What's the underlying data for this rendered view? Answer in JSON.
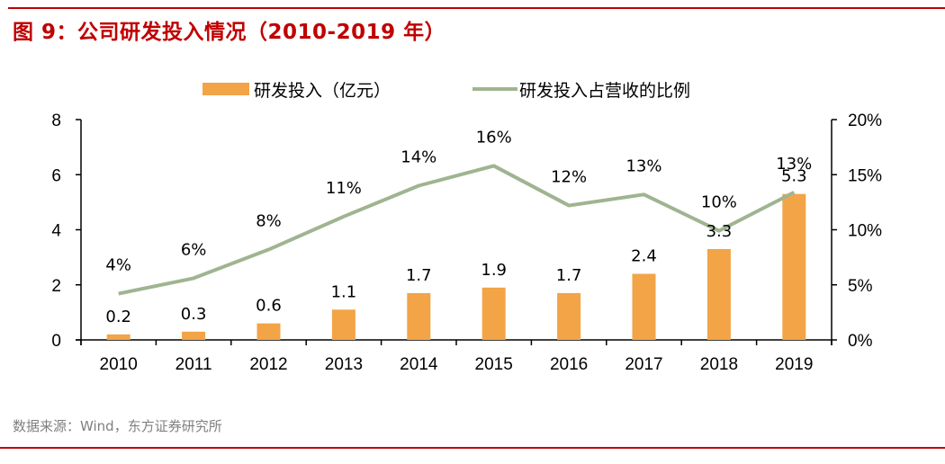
{
  "header": {
    "title": "图 9：公司研发投入情况（2010-2019 年）"
  },
  "footer": {
    "source": "数据来源：Wind，东方证券研究所"
  },
  "colors": {
    "rule": "#c00000",
    "bar": "#f2a447",
    "line": "#9fb490",
    "axis": "#000000"
  },
  "chart_data": {
    "type": "bar",
    "title": "公司研发投入情况（2010-2019 年）",
    "categories": [
      "2010",
      "2011",
      "2012",
      "2013",
      "2014",
      "2015",
      "2016",
      "2017",
      "2018",
      "2019"
    ],
    "series": [
      {
        "name": "研发投入（亿元）",
        "type": "bar",
        "axis": "left",
        "values": [
          0.2,
          0.3,
          0.6,
          1.1,
          1.7,
          1.9,
          1.7,
          2.4,
          3.3,
          5.3
        ],
        "labels": [
          "0.2",
          "0.3",
          "0.6",
          "1.1",
          "1.7",
          "1.9",
          "1.7",
          "2.4",
          "3.3",
          "5.3"
        ]
      },
      {
        "name": "研发投入占营收的比例",
        "type": "line",
        "axis": "right",
        "values": [
          4.2,
          5.6,
          8.2,
          11.2,
          14.0,
          15.8,
          12.2,
          13.2,
          9.9,
          13.4
        ],
        "labels": [
          "4%",
          "6%",
          "8%",
          "11%",
          "14%",
          "16%",
          "12%",
          "13%",
          "10%",
          "13%"
        ]
      }
    ],
    "xlabel": "",
    "ylabel_left": "",
    "ylabel_right": "",
    "ylim_left": [
      0,
      8
    ],
    "yticks_left": [
      "0",
      "2",
      "4",
      "6",
      "8"
    ],
    "ylim_right": [
      0,
      20
    ],
    "yticks_right": [
      "0%",
      "5%",
      "10%",
      "15%",
      "20%"
    ],
    "grid": false,
    "legend_position": "top-center"
  }
}
